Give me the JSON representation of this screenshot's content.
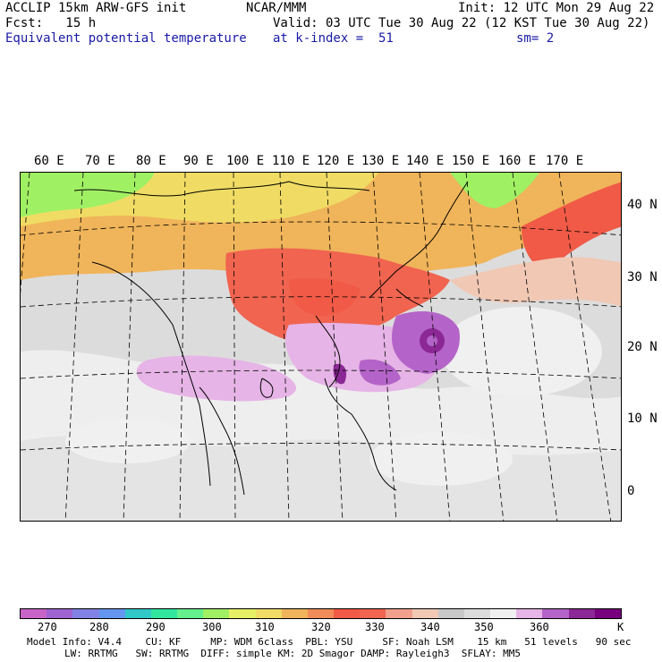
{
  "header": {
    "left_line1": "ACCLIP 15km ARW-GFS init",
    "left_line2": "Fcst:   15 h",
    "left_line3": "Equivalent potential temperature",
    "center_line1": "NCAR/MMM",
    "right_line1": "Init: 12 UTC Mon 29 Aug 22",
    "valid_line": "Valid: 03 UTC Tue 30 Aug 22 (12 KST Tue 30 Aug 22)",
    "level_line": "at k-index =  51",
    "smooth_line": "sm= 2"
  },
  "map": {
    "longitude_labels": [
      "60 E",
      "70 E",
      "80 E",
      "90 E",
      "100 E",
      "110 E",
      "120 E",
      "130 E",
      "140 E",
      "150 E",
      "160 E",
      "170 E"
    ],
    "latitude_labels": [
      "40 N",
      "30 N",
      "20 N",
      "10 N",
      "0"
    ]
  },
  "colorbar": {
    "colors": [
      "#c864c8",
      "#a064d2",
      "#8282e6",
      "#6496f0",
      "#32c8c8",
      "#32e6a0",
      "#64f08c",
      "#a0f064",
      "#e6f064",
      "#f0dc64",
      "#f0b45a",
      "#f08c5a",
      "#f05a46",
      "#f06450",
      "#f0a08c",
      "#f0c8b4",
      "#c8c8c8",
      "#dcdcdc",
      "#f0f0f0",
      "#e6b4e6",
      "#b464c8",
      "#8c2896",
      "#78007e"
    ],
    "tick_labels": [
      "270",
      "280",
      "290",
      "300",
      "310",
      "320",
      "330",
      "340",
      "350",
      "360"
    ],
    "unit": "K"
  },
  "footer": {
    "line1": "Model Info: V4.4    CU: KF     MP: WDM 6class  PBL: YSU     SF: Noah LSM    15 km   51 levels   90 sec",
    "line2": "LW: RRTMG   SW: RRTMG  DIFF: simple KM: 2D Smagor DAMP: Rayleigh3  SFLAY: MM5"
  }
}
